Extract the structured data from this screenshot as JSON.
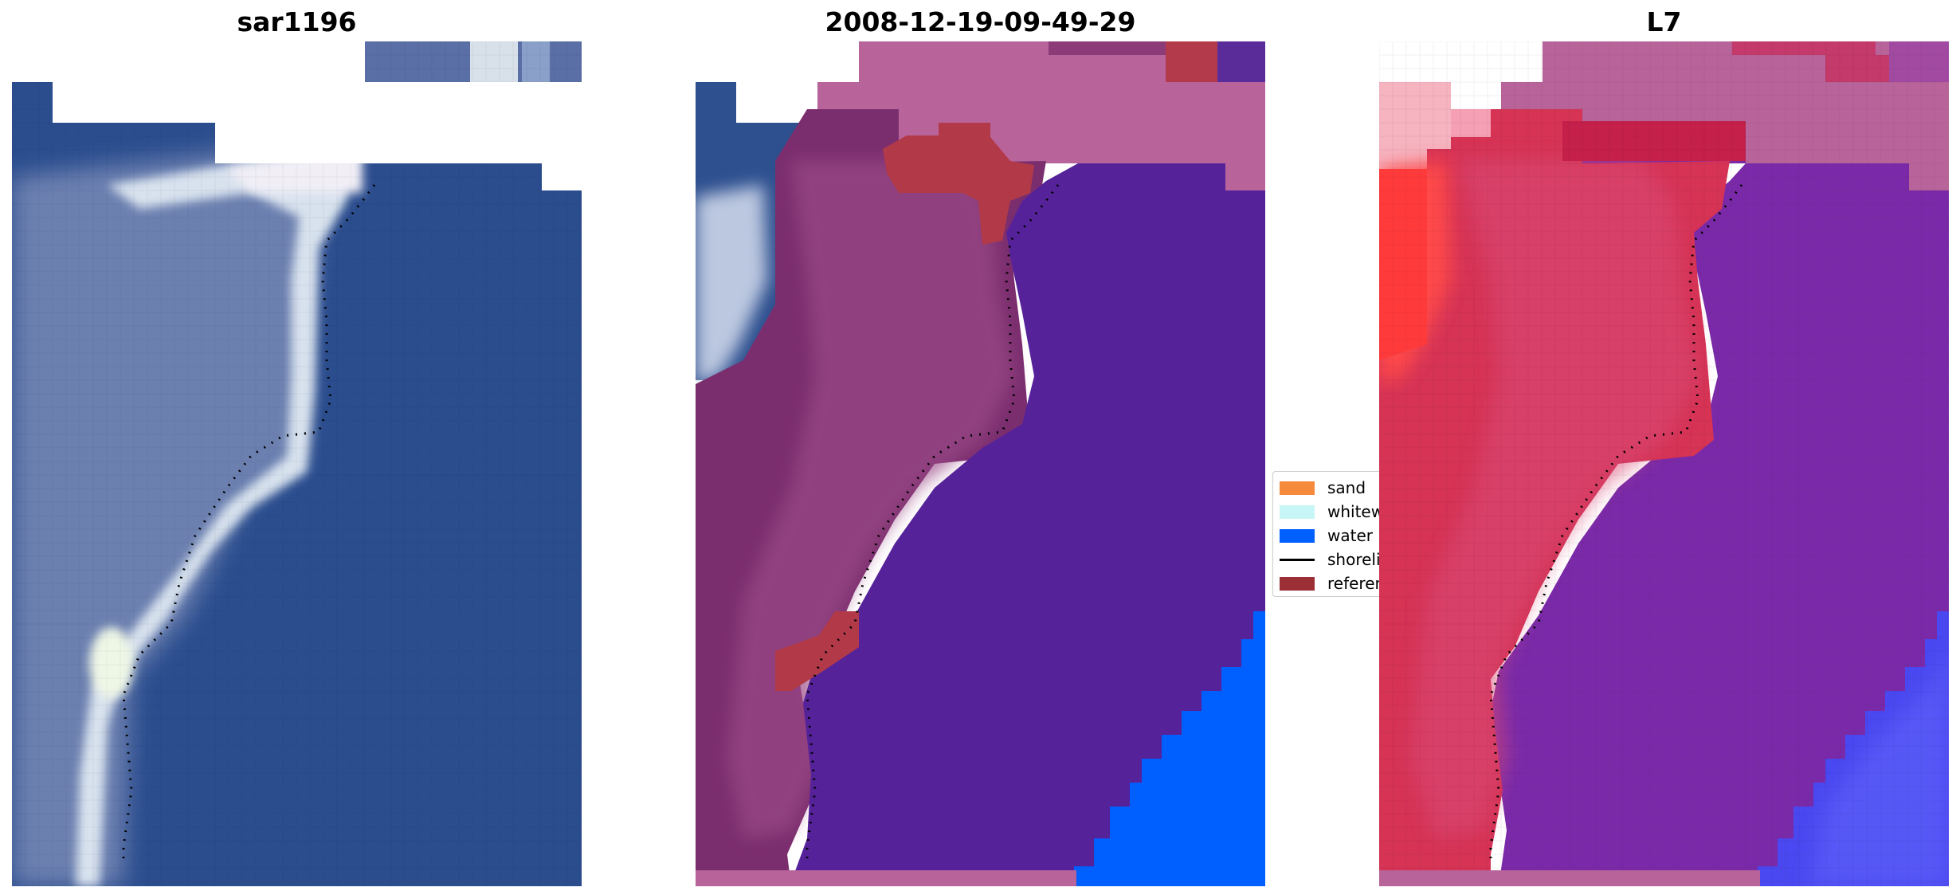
{
  "panels": [
    {
      "title": "sar1196"
    },
    {
      "title": "2008-12-19-09-49-29"
    },
    {
      "title": "L7"
    }
  ],
  "legend": {
    "items": [
      {
        "label": "sand",
        "color": "#f58a3c",
        "kind": "patch"
      },
      {
        "label": "whitewater",
        "color": "#c8f5f5",
        "kind": "patch"
      },
      {
        "label": "water",
        "color": "#005fff",
        "kind": "patch"
      },
      {
        "label": "shoreline",
        "color": "#000000",
        "kind": "line"
      },
      {
        "label": "reference",
        "color": "#9b2f35",
        "kind": "patch"
      }
    ]
  },
  "colors": {
    "ocean_blue": "#2b4d8e",
    "land_gray_blue": "#6a7fb0",
    "foam_white": "#eef3f8",
    "overlay_pink": "#b8649a",
    "overlay_purple": "#56229a",
    "overlay_red": "#b83a48",
    "overlay_magenta": "#7b2e6e",
    "l7_red": "#d63355",
    "l7_violet": "#7a2aa8",
    "bright_blue": "#005fff"
  }
}
